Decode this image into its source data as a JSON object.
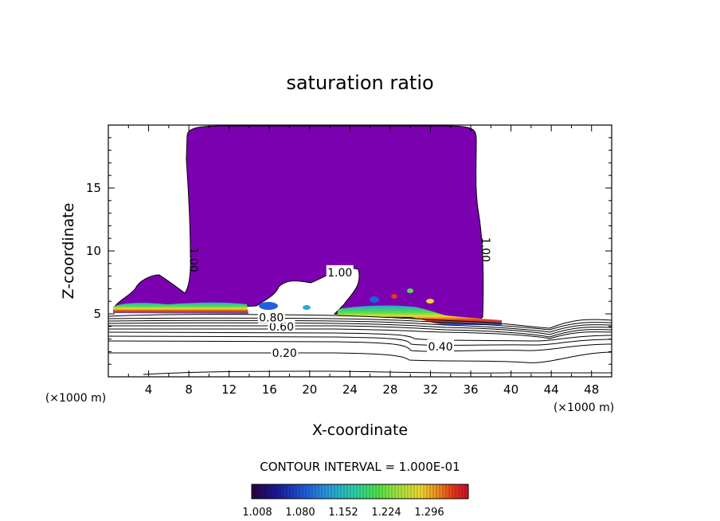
{
  "chart_data": {
    "type": "contour",
    "title": "saturation ratio",
    "xlabel": "X-coordinate",
    "ylabel": "Z-coordinate",
    "x_unit": "(×1000 m)",
    "y_unit": "(×1000 m)",
    "xlim": [
      0,
      50
    ],
    "ylim": [
      0,
      20
    ],
    "x_ticks": [
      4,
      8,
      12,
      16,
      20,
      24,
      28,
      32,
      36,
      40,
      44,
      48
    ],
    "y_ticks": [
      5,
      10,
      15
    ],
    "contour_interval_text": "CONTOUR INTERVAL = 1.000E-01",
    "contour_labels": [
      {
        "text": "0.20",
        "x": 17.5,
        "z": 1.9
      },
      {
        "text": "0.40",
        "x": 33.0,
        "z": 2.4
      },
      {
        "text": "0.60",
        "x": 17.2,
        "z": 4.0
      },
      {
        "text": "0.80",
        "x": 16.2,
        "z": 4.7
      },
      {
        "text": "1.00",
        "x": 8.5,
        "z": 9.3,
        "rotated": true
      },
      {
        "text": "1.00",
        "x": 23.0,
        "z": 8.3
      },
      {
        "text": "1.00",
        "x": 37.5,
        "z": 10.1,
        "rotated": true
      }
    ],
    "colorbar": {
      "ticks": [
        "1.008",
        "1.080",
        "1.152",
        "1.224",
        "1.296"
      ],
      "colors": [
        "#2a0040",
        "#1a1a9a",
        "#1f5fe0",
        "#27a6d8",
        "#2cd3a0",
        "#4fe04a",
        "#a8e43c",
        "#f0d82e",
        "#f08a1e",
        "#e8361a",
        "#c8102a"
      ]
    },
    "fill_color": "#7a00b0",
    "saturated_region": {
      "x_min": 1,
      "x_max": 39,
      "z_min": 4.5,
      "z_max": 19.8
    }
  }
}
